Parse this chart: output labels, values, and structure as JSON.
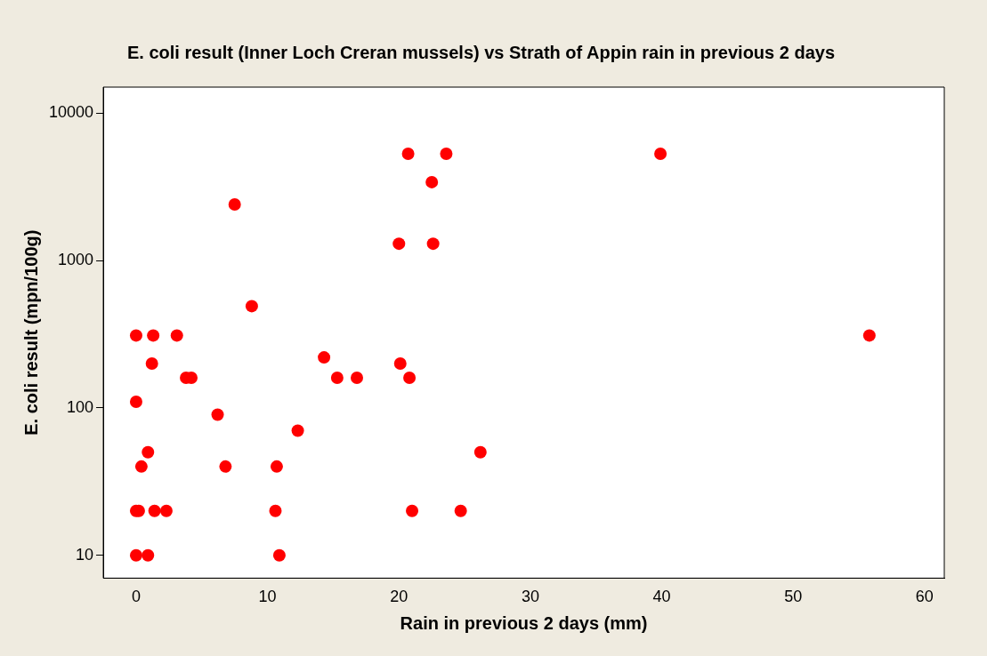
{
  "chart_data": {
    "type": "scatter",
    "title": "E. coli result (Inner Loch Creran mussels) vs Strath of Appin rain in previous 2 days",
    "xlabel": "Rain in previous 2 days (mm)",
    "ylabel": "E. coli result (mpn/100g)",
    "x": [
      0,
      0.9,
      10.9,
      0,
      0.2,
      1.4,
      2.3,
      10.6,
      21,
      24.7,
      0.4,
      6.8,
      10.7,
      0.9,
      26.2,
      12.3,
      6.2,
      0,
      1.2,
      20.1,
      14.3,
      3.8,
      4.2,
      15.3,
      16.8,
      20.8,
      0,
      1.3,
      3.1,
      55.8,
      8.8,
      7.5,
      20,
      22.6,
      22.5,
      20.7,
      23.6,
      39.9
    ],
    "series": [
      {
        "color": "#ff0000",
        "values": [
          10,
          10,
          10,
          20,
          20,
          20,
          20,
          20,
          20,
          20,
          40,
          40,
          40,
          50,
          50,
          70,
          90,
          110,
          200,
          200,
          220,
          160,
          160,
          160,
          160,
          160,
          310,
          310,
          310,
          310,
          490,
          2400,
          1300,
          1300,
          3400,
          5300,
          5300,
          5300
        ]
      }
    ],
    "xlim": [
      -2.5,
      61.5
    ],
    "xticks": [
      0,
      10,
      20,
      30,
      40,
      50,
      60
    ],
    "ylim": [
      7,
      15000
    ],
    "yticks": [
      10,
      100,
      1000,
      10000
    ],
    "log": "y",
    "grid": false,
    "legend": false,
    "marker": "circle"
  }
}
